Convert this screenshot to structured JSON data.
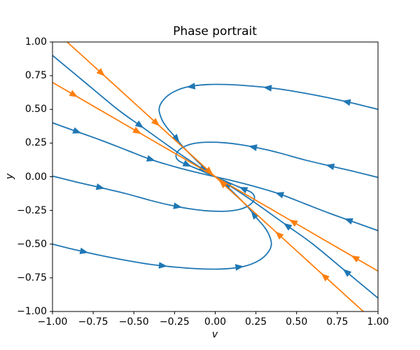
{
  "chart_data": {
    "type": "line",
    "title": "Phase portrait",
    "xlabel": "v",
    "ylabel": "y",
    "xlim": [
      -1,
      1
    ],
    "ylim": [
      -1,
      1
    ],
    "grid": false,
    "legend": null,
    "xticks": {
      "values": [
        -1,
        -0.75,
        -0.5,
        -0.25,
        0,
        0.25,
        0.5,
        0.75,
        1
      ],
      "labels": [
        "−1.00",
        "−0.75",
        "−0.50",
        "−0.25",
        "0.00",
        "0.25",
        "0.50",
        "0.75",
        "1.00"
      ]
    },
    "yticks": {
      "values": [
        -1,
        -0.75,
        -0.5,
        -0.25,
        0,
        0.25,
        0.5,
        0.75,
        1
      ],
      "labels": [
        "−1.00",
        "−0.75",
        "−0.50",
        "−0.25",
        "0.00",
        "0.25",
        "0.50",
        "0.75",
        "1.00"
      ]
    },
    "colors": {
      "blue": "#1f77b4",
      "orange": "#ff7f0e"
    },
    "axis_color": "#000000",
    "series": [
      {
        "name": "blue-upper-left-to-origin",
        "color": "blue",
        "arrows": [
          0.55,
          0.93
        ],
        "points": [
          [
            -1,
            0.9
          ],
          [
            -0.8,
            0.7
          ],
          [
            -0.6,
            0.5
          ],
          [
            -0.45,
            0.37
          ],
          [
            -0.3,
            0.24
          ],
          [
            -0.2,
            0.155
          ],
          [
            -0.1,
            0.075
          ],
          [
            -0.04,
            0.028
          ],
          [
            0,
            0
          ]
        ]
      },
      {
        "name": "blue-lower-right-to-origin",
        "color": "blue",
        "arrows": [
          0.2,
          0.57,
          0.93
        ],
        "points": [
          [
            1,
            -0.9
          ],
          [
            0.8,
            -0.7
          ],
          [
            0.6,
            -0.5
          ],
          [
            0.45,
            -0.37
          ],
          [
            0.3,
            -0.24
          ],
          [
            0.2,
            -0.155
          ],
          [
            0.1,
            -0.075
          ],
          [
            0.04,
            -0.028
          ],
          [
            0,
            0
          ]
        ]
      },
      {
        "name": "blue-left-shallow-to-origin",
        "color": "blue",
        "arrows": [
          0.15,
          0.61
        ],
        "points": [
          [
            -1,
            0.4
          ],
          [
            -0.85,
            0.335
          ],
          [
            -0.7,
            0.27
          ],
          [
            -0.55,
            0.2
          ],
          [
            -0.4,
            0.13
          ],
          [
            -0.28,
            0.085
          ],
          [
            -0.18,
            0.052
          ],
          [
            -0.1,
            0.028
          ],
          [
            -0.04,
            0.011
          ],
          [
            0,
            0
          ]
        ]
      },
      {
        "name": "blue-right-shallow-to-origin",
        "color": "blue",
        "arrows": [
          0.18,
          0.61
        ],
        "points": [
          [
            1,
            -0.4
          ],
          [
            0.85,
            -0.335
          ],
          [
            0.7,
            -0.27
          ],
          [
            0.55,
            -0.2
          ],
          [
            0.4,
            -0.13
          ],
          [
            0.28,
            -0.085
          ],
          [
            0.18,
            -0.052
          ],
          [
            0.1,
            -0.028
          ],
          [
            0.04,
            -0.011
          ],
          [
            0,
            0
          ]
        ]
      },
      {
        "name": "blue-left-hook",
        "color": "blue",
        "arrows": [
          0.19,
          0.5,
          0.88
        ],
        "points": [
          [
            -1,
            0.005
          ],
          [
            -0.85,
            -0.04
          ],
          [
            -0.7,
            -0.082
          ],
          [
            -0.55,
            -0.125
          ],
          [
            -0.4,
            -0.175
          ],
          [
            -0.28,
            -0.21
          ],
          [
            -0.16,
            -0.237
          ],
          [
            -0.05,
            -0.253
          ],
          [
            0.06,
            -0.256
          ],
          [
            0.14,
            -0.245
          ],
          [
            0.2,
            -0.218
          ],
          [
            0.235,
            -0.18
          ],
          [
            0.24,
            -0.145
          ],
          [
            0.22,
            -0.115
          ],
          [
            0.17,
            -0.088
          ],
          [
            0.11,
            -0.058
          ],
          [
            0.05,
            -0.026
          ],
          [
            0,
            0
          ]
        ]
      },
      {
        "name": "blue-right-hook",
        "color": "blue",
        "arrows": [
          0.19,
          0.5,
          0.88
        ],
        "points": [
          [
            1,
            -0.005
          ],
          [
            0.85,
            0.04
          ],
          [
            0.7,
            0.082
          ],
          [
            0.55,
            0.125
          ],
          [
            0.4,
            0.175
          ],
          [
            0.28,
            0.21
          ],
          [
            0.16,
            0.237
          ],
          [
            0.05,
            0.253
          ],
          [
            -0.06,
            0.256
          ],
          [
            -0.14,
            0.245
          ],
          [
            -0.2,
            0.218
          ],
          [
            -0.235,
            0.18
          ],
          [
            -0.24,
            0.145
          ],
          [
            -0.22,
            0.115
          ],
          [
            -0.17,
            0.088
          ],
          [
            -0.11,
            0.058
          ],
          [
            -0.05,
            0.026
          ],
          [
            0,
            0
          ]
        ]
      },
      {
        "name": "blue-lower-loop",
        "color": "blue",
        "arrows": [
          0.1,
          0.35,
          0.59,
          0.83
        ],
        "points": [
          [
            -1,
            -0.5
          ],
          [
            -0.85,
            -0.545
          ],
          [
            -0.7,
            -0.585
          ],
          [
            -0.55,
            -0.62
          ],
          [
            -0.4,
            -0.65
          ],
          [
            -0.25,
            -0.67
          ],
          [
            -0.1,
            -0.683
          ],
          [
            0.05,
            -0.684
          ],
          [
            0.18,
            -0.664
          ],
          [
            0.27,
            -0.62
          ],
          [
            0.325,
            -0.56
          ],
          [
            0.345,
            -0.5
          ],
          [
            0.33,
            -0.43
          ],
          [
            0.3,
            -0.37
          ],
          [
            0.25,
            -0.3
          ],
          [
            0.2,
            -0.225
          ],
          [
            0.14,
            -0.15
          ],
          [
            0.08,
            -0.08
          ],
          [
            0.04,
            -0.038
          ],
          [
            0,
            0
          ]
        ]
      },
      {
        "name": "blue-upper-loop",
        "color": "blue",
        "arrows": [
          0.1,
          0.35,
          0.59,
          0.83
        ],
        "points": [
          [
            1,
            0.5
          ],
          [
            0.85,
            0.545
          ],
          [
            0.7,
            0.585
          ],
          [
            0.55,
            0.62
          ],
          [
            0.4,
            0.65
          ],
          [
            0.25,
            0.67
          ],
          [
            0.1,
            0.683
          ],
          [
            -0.05,
            0.684
          ],
          [
            -0.18,
            0.664
          ],
          [
            -0.27,
            0.62
          ],
          [
            -0.325,
            0.56
          ],
          [
            -0.345,
            0.5
          ],
          [
            -0.33,
            0.43
          ],
          [
            -0.3,
            0.37
          ],
          [
            -0.25,
            0.3
          ],
          [
            -0.2,
            0.225
          ],
          [
            -0.14,
            0.15
          ],
          [
            -0.08,
            0.08
          ],
          [
            -0.04,
            0.038
          ],
          [
            0,
            0
          ]
        ]
      },
      {
        "name": "orange-ray-upper-steep",
        "color": "orange",
        "arrows": [
          0.23,
          0.6,
          0.96
        ],
        "points": [
          [
            -0.91,
            1.0
          ],
          [
            -0.7,
            0.77
          ],
          [
            -0.5,
            0.55
          ],
          [
            -0.3,
            0.33
          ],
          [
            -0.1,
            0.11
          ],
          [
            0,
            0
          ]
        ]
      },
      {
        "name": "orange-ray-lower-steep",
        "color": "orange",
        "arrows": [
          0.26,
          0.57,
          0.95
        ],
        "points": [
          [
            0.91,
            -1.0
          ],
          [
            0.7,
            -0.77
          ],
          [
            0.5,
            -0.55
          ],
          [
            0.3,
            -0.33
          ],
          [
            0.1,
            -0.11
          ],
          [
            0,
            0
          ]
        ]
      },
      {
        "name": "orange-ray-upper-shallow",
        "color": "orange",
        "arrows": [
          0.13,
          0.52
        ],
        "points": [
          [
            -1,
            0.7
          ],
          [
            -0.75,
            0.525
          ],
          [
            -0.5,
            0.35
          ],
          [
            -0.25,
            0.175
          ],
          [
            -0.1,
            0.07
          ],
          [
            0,
            0
          ]
        ]
      },
      {
        "name": "orange-ray-lower-shallow",
        "color": "orange",
        "arrows": [
          0.14,
          0.52
        ],
        "points": [
          [
            1,
            -0.7
          ],
          [
            0.75,
            -0.525
          ],
          [
            0.5,
            -0.35
          ],
          [
            0.25,
            -0.175
          ],
          [
            0.1,
            -0.07
          ],
          [
            0,
            0
          ]
        ]
      }
    ]
  }
}
